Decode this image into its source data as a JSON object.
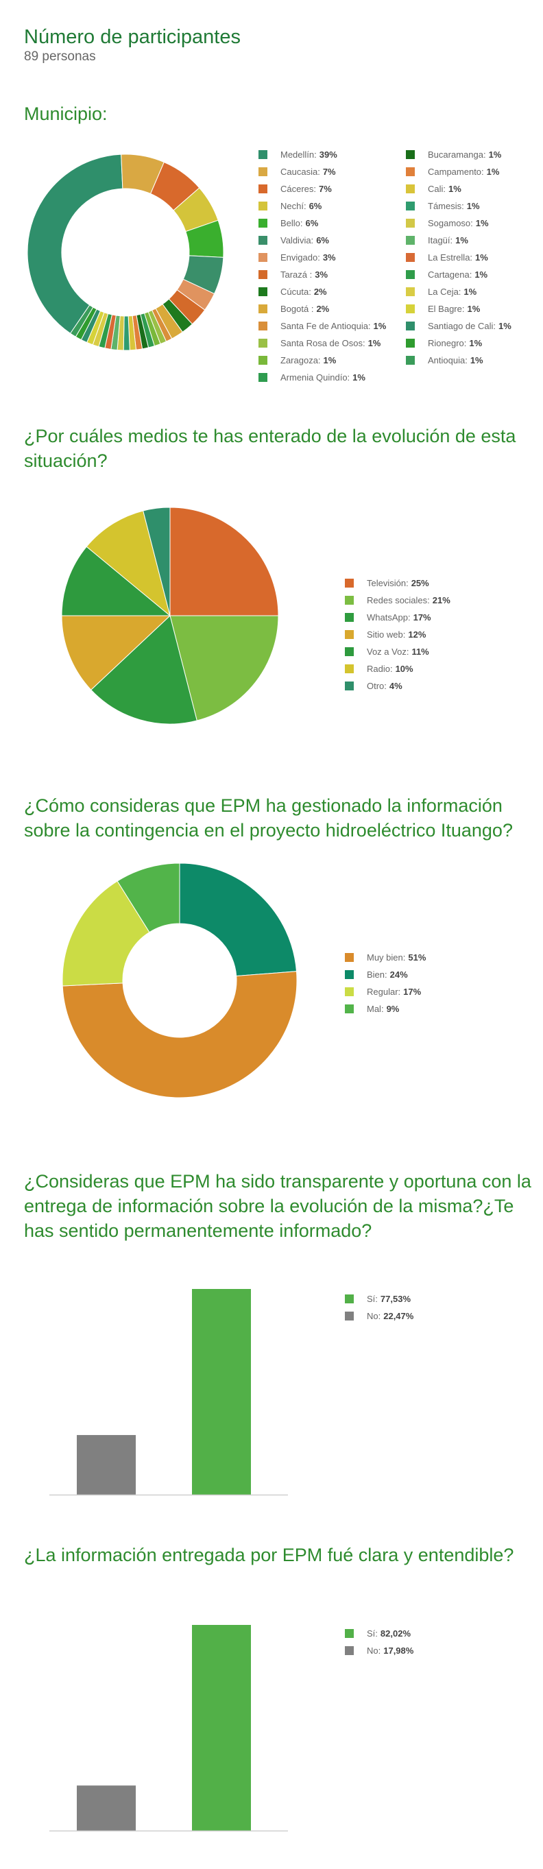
{
  "header": {
    "title": "Número de participantes",
    "subtitle": "89 personas"
  },
  "chart_data": [
    {
      "type": "pie",
      "title": "Municipio:",
      "donut": true,
      "slices": [
        {
          "label": "Medellín:",
          "value_label": "39%",
          "value": 39,
          "color": "#2f8f6b"
        },
        {
          "label": "Caucasia:",
          "value_label": "7%",
          "value": 7,
          "color": "#d9a843"
        },
        {
          "label": "Cáceres:",
          "value_label": "7%",
          "value": 7,
          "color": "#d8692c"
        },
        {
          "label": "Nechí:",
          "value_label": "6%",
          "value": 6,
          "color": "#d4c43a"
        },
        {
          "label": "Bello:",
          "value_label": "6%",
          "value": 6,
          "color": "#3aaf2e"
        },
        {
          "label": "Valdivia:",
          "value_label": "6%",
          "value": 6,
          "color": "#3a8f6a"
        },
        {
          "label": "Envigado:",
          "value_label": "3%",
          "value": 3,
          "color": "#e0935f"
        },
        {
          "label": "Tarazá :",
          "value_label": "3%",
          "value": 3,
          "color": "#d46a2a"
        },
        {
          "label": "Cúcuta:",
          "value_label": "2%",
          "value": 2,
          "color": "#1e7a1e"
        },
        {
          "label": "Bogotá :",
          "value_label": "2%",
          "value": 2,
          "color": "#d9a93a"
        },
        {
          "label": "Santa Fe de Antioquia:",
          "value_label": "1%",
          "value": 1,
          "color": "#d98f3a"
        },
        {
          "label": "Santa Rosa de Osos:",
          "value_label": "1%",
          "value": 1,
          "color": "#9ac046"
        },
        {
          "label": "Zaragoza:",
          "value_label": "1%",
          "value": 1,
          "color": "#7ab83a"
        },
        {
          "label": "Armenia Quindío:",
          "value_label": "1%",
          "value": 1,
          "color": "#2f9c4f"
        },
        {
          "label": "Bucaramanga:",
          "value_label": "1%",
          "value": 1,
          "color": "#1a6e1a"
        },
        {
          "label": "Campamento:",
          "value_label": "1%",
          "value": 1,
          "color": "#e0803a"
        },
        {
          "label": "Cali:",
          "value_label": "1%",
          "value": 1,
          "color": "#d9c43a"
        },
        {
          "label": "Támesis:",
          "value_label": "1%",
          "value": 1,
          "color": "#2f9c6f"
        },
        {
          "label": "Sogamoso:",
          "value_label": "1%",
          "value": 1,
          "color": "#d2c847"
        },
        {
          "label": "Itagüí:",
          "value_label": "1%",
          "value": 1,
          "color": "#5fb36a"
        },
        {
          "label": "La Estrella:",
          "value_label": "1%",
          "value": 1,
          "color": "#d86a35"
        },
        {
          "label": "Cartagena:",
          "value_label": "1%",
          "value": 1,
          "color": "#2f9c4a"
        },
        {
          "label": "La Ceja:",
          "value_label": "1%",
          "value": 1,
          "color": "#d9cc45"
        },
        {
          "label": "El Bagre:",
          "value_label": "1%",
          "value": 1,
          "color": "#d6d23a"
        },
        {
          "label": "Santiago de Cali:",
          "value_label": "1%",
          "value": 1,
          "color": "#2f8f6b"
        },
        {
          "label": "Rionegro:",
          "value_label": "1%",
          "value": 1,
          "color": "#2f9c2f"
        },
        {
          "label": "Antioquia:",
          "value_label": "1%",
          "value": 1,
          "color": "#3a9c5a"
        }
      ]
    },
    {
      "type": "pie",
      "title": "¿Por cuáles medios te has enterado de la evolución de esta situación?",
      "donut": false,
      "slices": [
        {
          "label": "Televisión:",
          "value_label": "25%",
          "value": 25,
          "color": "#d8692c"
        },
        {
          "label": "Redes sociales:",
          "value_label": "21%",
          "value": 21,
          "color": "#7cbd42"
        },
        {
          "label": "WhatsApp:",
          "value_label": "17%",
          "value": 17,
          "color": "#2f9c3f"
        },
        {
          "label": "Sitio web:",
          "value_label": "12%",
          "value": 12,
          "color": "#d9a82e"
        },
        {
          "label": "Voz a Voz:",
          "value_label": "11%",
          "value": 11,
          "color": "#2e9a3e"
        },
        {
          "label": "Radio:",
          "value_label": "10%",
          "value": 10,
          "color": "#d4c42e"
        },
        {
          "label": "Otro:",
          "value_label": "4%",
          "value": 4,
          "color": "#2f8f6b"
        }
      ]
    },
    {
      "type": "pie",
      "title": "¿Cómo consideras que EPM ha gestionado la información sobre la contingencia en el proyecto hidroeléctrico Ituango?",
      "donut": true,
      "slices": [
        {
          "label": "Muy bien:",
          "value_label": "51%",
          "value": 51,
          "color": "#d98b2b"
        },
        {
          "label": "Bien:",
          "value_label": "24%",
          "value": 24,
          "color": "#0d8a68"
        },
        {
          "label": "Regular:",
          "value_label": "17%",
          "value": 17,
          "color": "#cbdc45"
        },
        {
          "label": "Mal:",
          "value_label": "9%",
          "value": 9,
          "color": "#52b44a"
        }
      ],
      "draw_order": [
        1,
        0,
        2,
        3
      ]
    },
    {
      "type": "bar",
      "title": "¿Consideras que EPM ha sido transparente y oportuna con la entrega de información sobre la evolución de la misma?¿Te has sentido permanentemente informado?",
      "categories": [
        "No",
        "Sí"
      ],
      "values": [
        22.47,
        77.53
      ],
      "colors": [
        "#808080",
        "#52b048"
      ],
      "legend": [
        {
          "label": "Sí:",
          "value_label": "77,53%",
          "color": "#52b048"
        },
        {
          "label": "No:",
          "value_label": "22,47%",
          "color": "#808080"
        }
      ],
      "ylim": [
        0,
        77.53
      ]
    },
    {
      "type": "bar",
      "title": "¿La información entregada por EPM fué clara y entendible?",
      "categories": [
        "No",
        "Sí"
      ],
      "values": [
        17.98,
        82.02
      ],
      "colors": [
        "#808080",
        "#52b048"
      ],
      "legend": [
        {
          "label": "Sí:",
          "value_label": "82,02%",
          "color": "#52b048"
        },
        {
          "label": "No:",
          "value_label": "17,98%",
          "color": "#808080"
        }
      ],
      "ylim": [
        0,
        82.02
      ]
    }
  ]
}
